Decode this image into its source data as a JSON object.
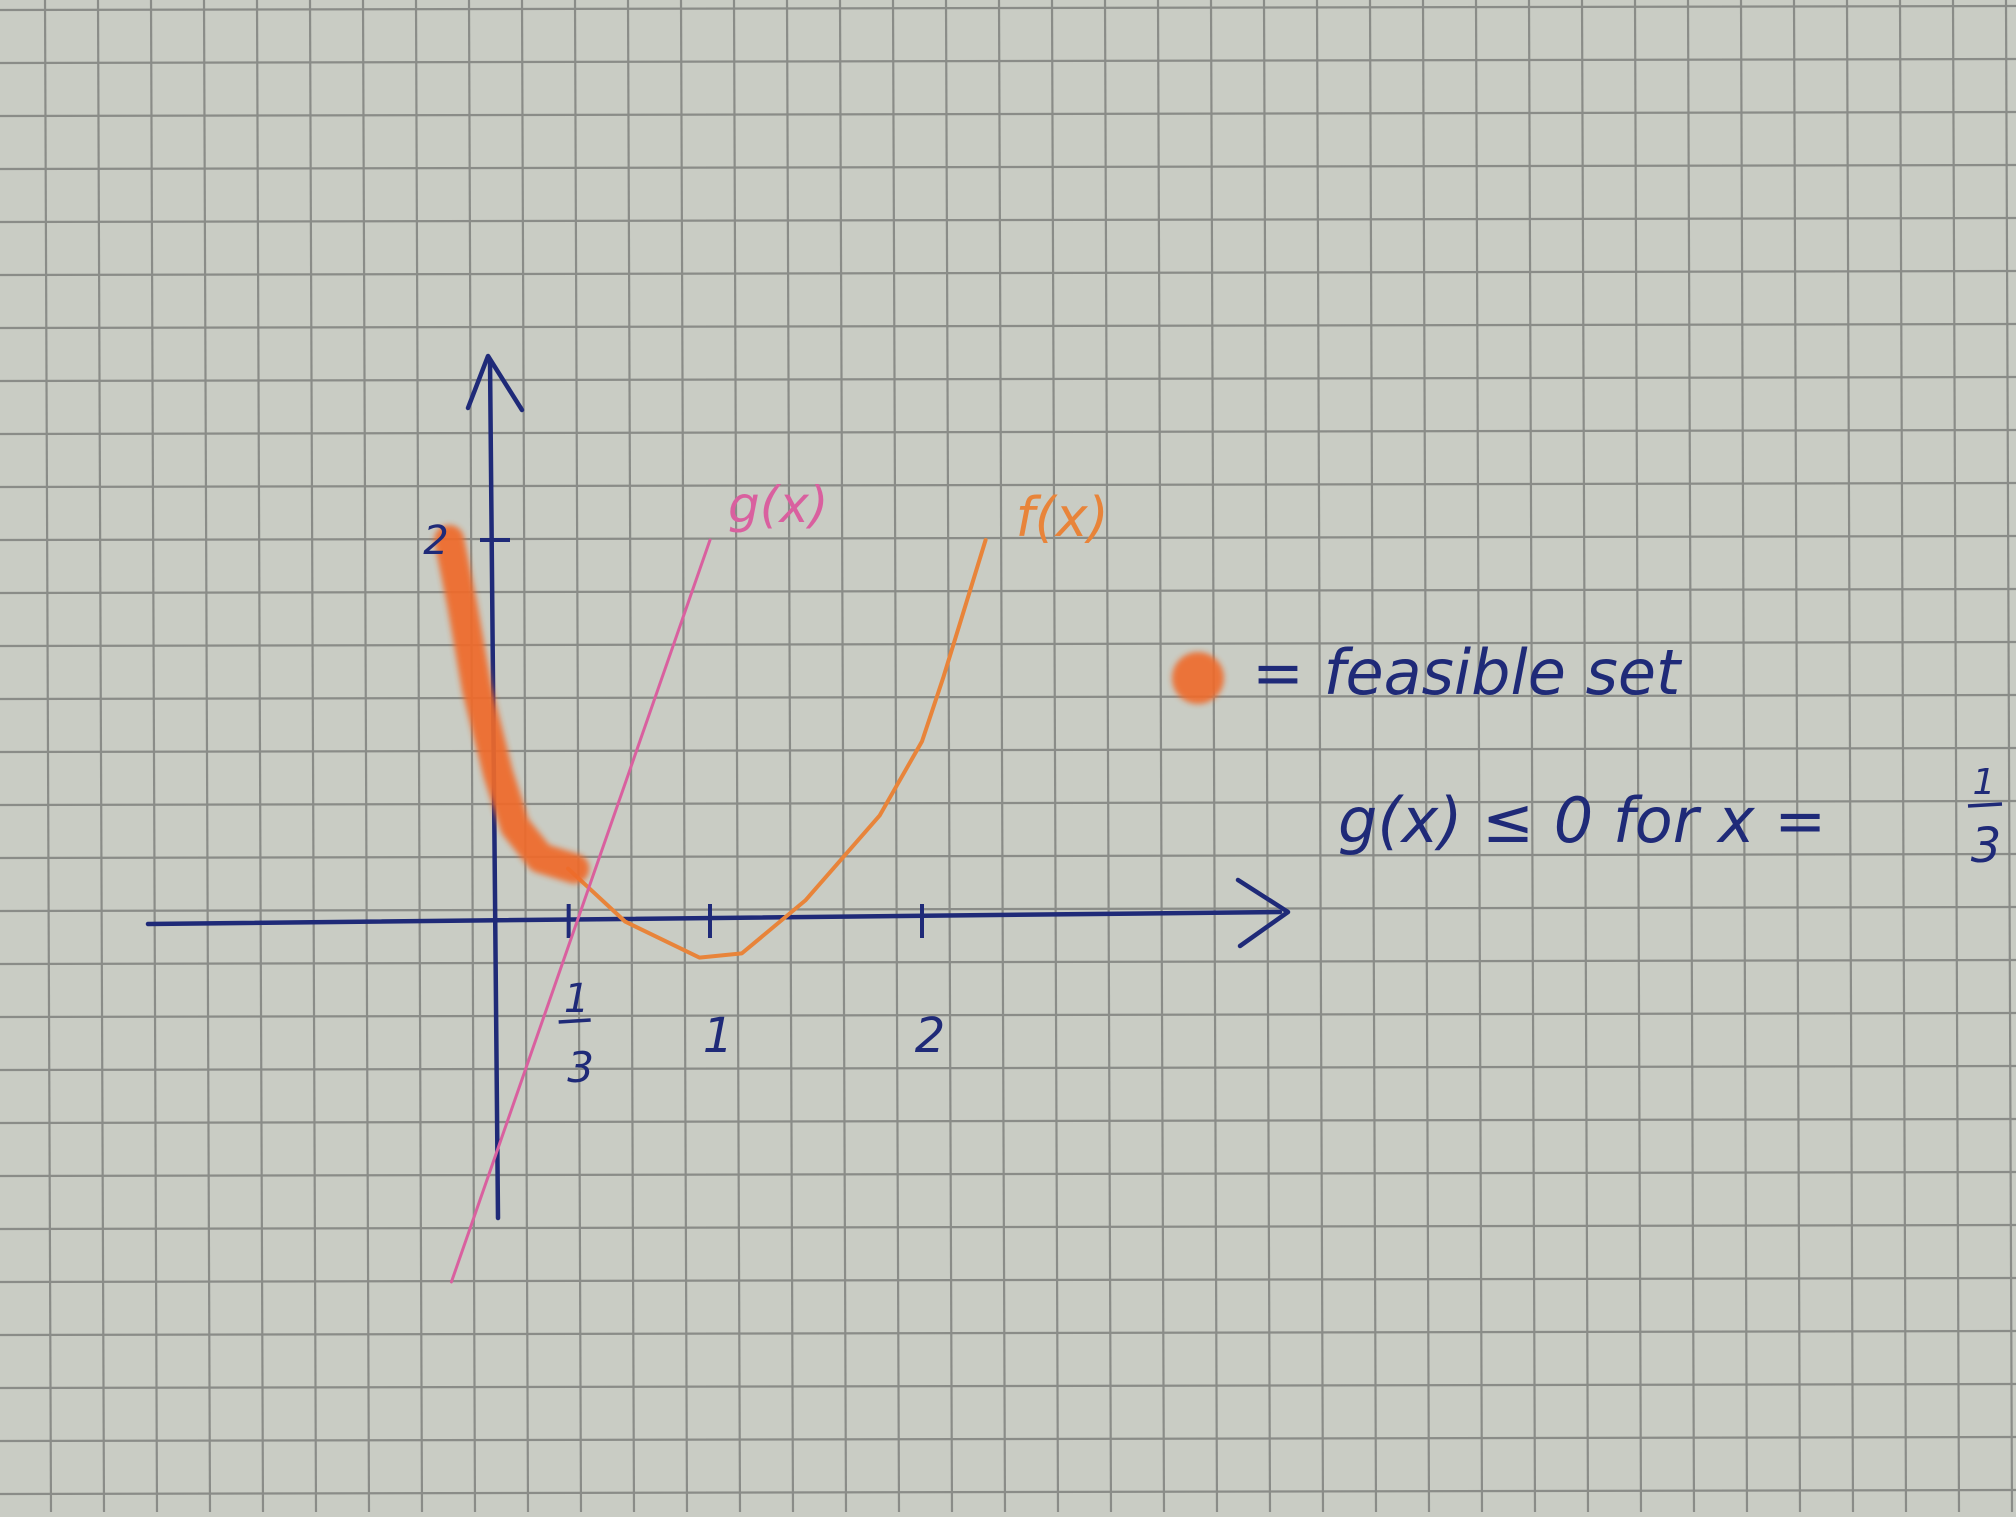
{
  "chart_data": {
    "type": "line",
    "title": "",
    "xlabel": "",
    "ylabel": "",
    "xlim": [
      -1.44,
      3.8
    ],
    "ylim": [
      -1.45,
      2.6
    ],
    "x_ticks": [
      {
        "value": 0.3333,
        "num": "1",
        "den": "3"
      },
      {
        "value": 1,
        "label": "1"
      },
      {
        "value": 2,
        "label": "2"
      }
    ],
    "y_ticks": [
      {
        "value": 2,
        "label": "2"
      }
    ],
    "grid": true,
    "series": [
      {
        "name": "f(x)",
        "color": "#e8843a",
        "points": [
          [
            0.33,
            0.45
          ],
          [
            0.6,
            0.2
          ],
          [
            0.95,
            0.03
          ],
          [
            1.15,
            0.05
          ],
          [
            1.45,
            0.3
          ],
          [
            1.8,
            0.7
          ],
          [
            2.0,
            1.05
          ],
          [
            2.1,
            1.35
          ],
          [
            2.3,
            2.0
          ]
        ]
      },
      {
        "name": "g(x)",
        "color": "#d9609f",
        "points": [
          [
            -0.22,
            -1.5
          ],
          [
            1.0,
            2.0
          ]
        ]
      },
      {
        "name": "feasible set",
        "color": "#ef6a2a",
        "points": [
          [
            -0.23,
            2.0
          ],
          [
            -0.17,
            1.7
          ],
          [
            -0.1,
            1.3
          ],
          [
            0.0,
            0.9
          ],
          [
            0.08,
            0.65
          ],
          [
            0.2,
            0.5
          ],
          [
            0.36,
            0.45
          ]
        ]
      }
    ],
    "annotations": {
      "legend_text": "= feasible set",
      "condition_text": "g(x) ≤ 0  for  x =",
      "condition_num": "1",
      "condition_den": "3"
    }
  },
  "colors": {
    "paper": "#c9ccc4",
    "grid": "#8a8c88",
    "ink": "#1f2a78",
    "f_curve": "#e8843a",
    "g_curve": "#d9609f",
    "highlight": "#ef6a2a"
  }
}
